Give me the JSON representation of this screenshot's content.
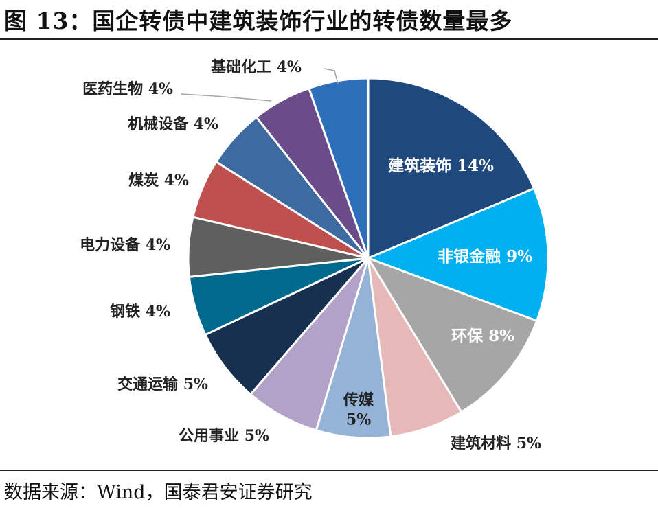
{
  "header": {
    "title": "图 13：国企转债中建筑装饰行业的转债数量最多"
  },
  "footer": {
    "source": "数据来源：Wind，国泰君安证券研究"
  },
  "chart_data": {
    "type": "pie",
    "title": "图 13：国企转债中建筑装饰行业的转债数量最多",
    "unit": "%",
    "slices": [
      {
        "name": "建筑装饰",
        "label": "建筑装饰 14%",
        "value": 14,
        "color": "#1f497d"
      },
      {
        "name": "非银金融",
        "label": "非银金融 9%",
        "value": 9,
        "color": "#00b0f0"
      },
      {
        "name": "环保",
        "label": "环保 8%",
        "value": 8,
        "color": "#a6a6a6"
      },
      {
        "name": "建筑材料",
        "label": "建筑材料 5%",
        "value": 5,
        "color": "#e6b9b8"
      },
      {
        "name": "传媒",
        "label": "传媒 5%",
        "value": 5,
        "color": "#95b3d7"
      },
      {
        "name": "公用事业",
        "label": "公用事业 5%",
        "value": 5,
        "color": "#b3a2c7"
      },
      {
        "name": "交通运输",
        "label": "交通运输 5%",
        "value": 5,
        "color": "#17304f"
      },
      {
        "name": "钢铁",
        "label": "钢铁 4%",
        "value": 4,
        "color": "#006a8e"
      },
      {
        "name": "电力设备",
        "label": "电力设备 4%",
        "value": 4,
        "color": "#5f5f5f"
      },
      {
        "name": "煤炭",
        "label": "煤炭 4%",
        "value": 4,
        "color": "#c0504d"
      },
      {
        "name": "机械设备",
        "label": "机械设备 4%",
        "value": 4,
        "color": "#3d6aa0"
      },
      {
        "name": "医药生物",
        "label": "医药生物 4%",
        "value": 4,
        "color": "#6b4c8a"
      },
      {
        "name": "基础化工",
        "label": "基础化工 4%",
        "value": 4,
        "color": "#2e6fba"
      }
    ]
  }
}
